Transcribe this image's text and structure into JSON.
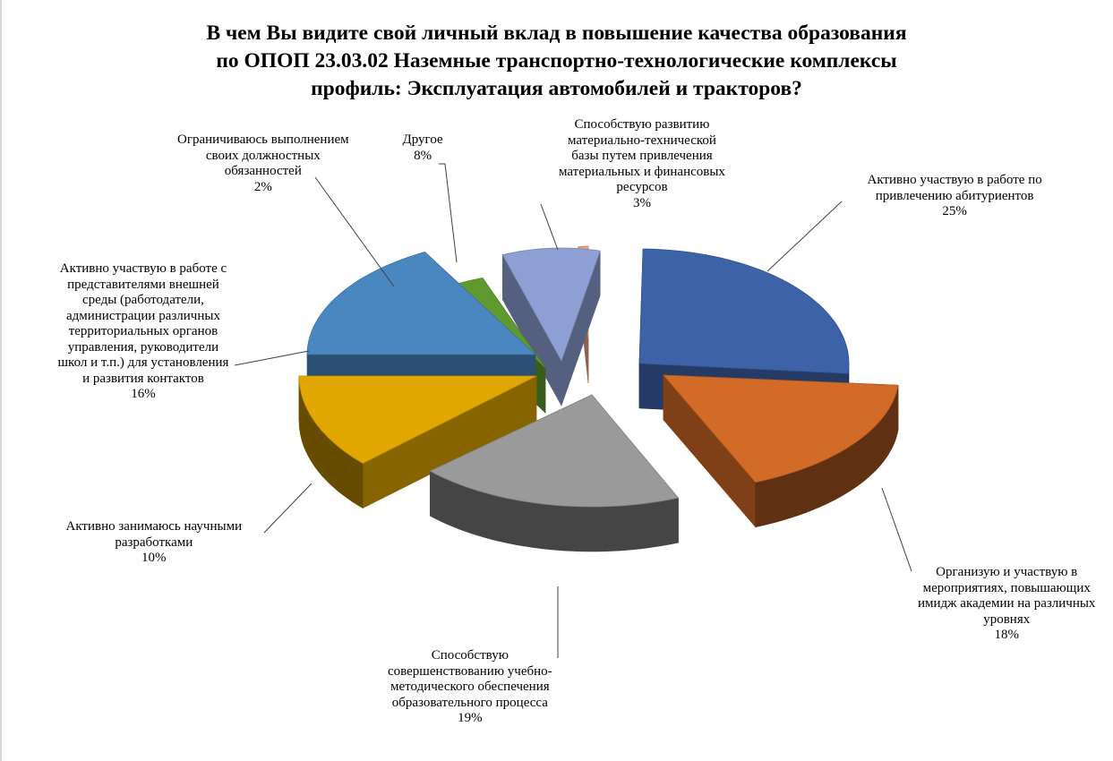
{
  "chart_data": {
    "type": "pie",
    "title_lines": [
      "В чем Вы видите свой личный вклад в повышение качества образования",
      "по ОПОП 23.03.02 Наземные транспортно-технологические комплексы",
      "профиль: Эксплуатация автомобилей и тракторов?"
    ],
    "style": "3d-exploded",
    "slices": [
      {
        "lines": [
          "Активно участвую  в работе по",
          "привлечению абитуриентов"
        ],
        "percent_label": "25%",
        "value": 25,
        "color": "#3e62a8"
      },
      {
        "lines": [
          "Организую и участвую в",
          "мероприятиях, повышающих",
          "имидж академии на различных",
          "уровнях"
        ],
        "percent_label": "18%",
        "value": 18,
        "color": "#d36b28"
      },
      {
        "lines": [
          "Способствую",
          "совершенствованию учебно-",
          "методического обеспечения",
          "образовательного процесса"
        ],
        "percent_label": "19%",
        "value": 19,
        "color": "#9a9a9a"
      },
      {
        "lines": [
          "Активно занимаюсь научными",
          "разработками"
        ],
        "percent_label": "10%",
        "value": 10,
        "color": "#e0a800"
      },
      {
        "lines": [
          "Активно участвую  в работе с",
          "представителями внешней",
          "среды (работодатели,",
          "администрации различных",
          "территориальных органов",
          "управления,  руководители",
          "школ и т.п.) для установления",
          "и развития контактов"
        ],
        "percent_label": "16%",
        "value": 16,
        "color": "#4a86c0"
      },
      {
        "lines": [
          "Ограничиваюсь выполнением",
          "своих должностных",
          "обязанностей"
        ],
        "percent_label": "2%",
        "value": 2,
        "color": "#5e9a2e"
      },
      {
        "lines": [
          "Другое"
        ],
        "percent_label": "8%",
        "value": 8,
        "color": "#8e9fd3"
      },
      {
        "lines": [
          "Способствую развитию",
          "материально-технической",
          "базы путем  привлечения",
          "материальных и финансовых",
          "ресурсов"
        ],
        "percent_label": "3%",
        "value": 3,
        "color": "#eba084"
      }
    ]
  }
}
